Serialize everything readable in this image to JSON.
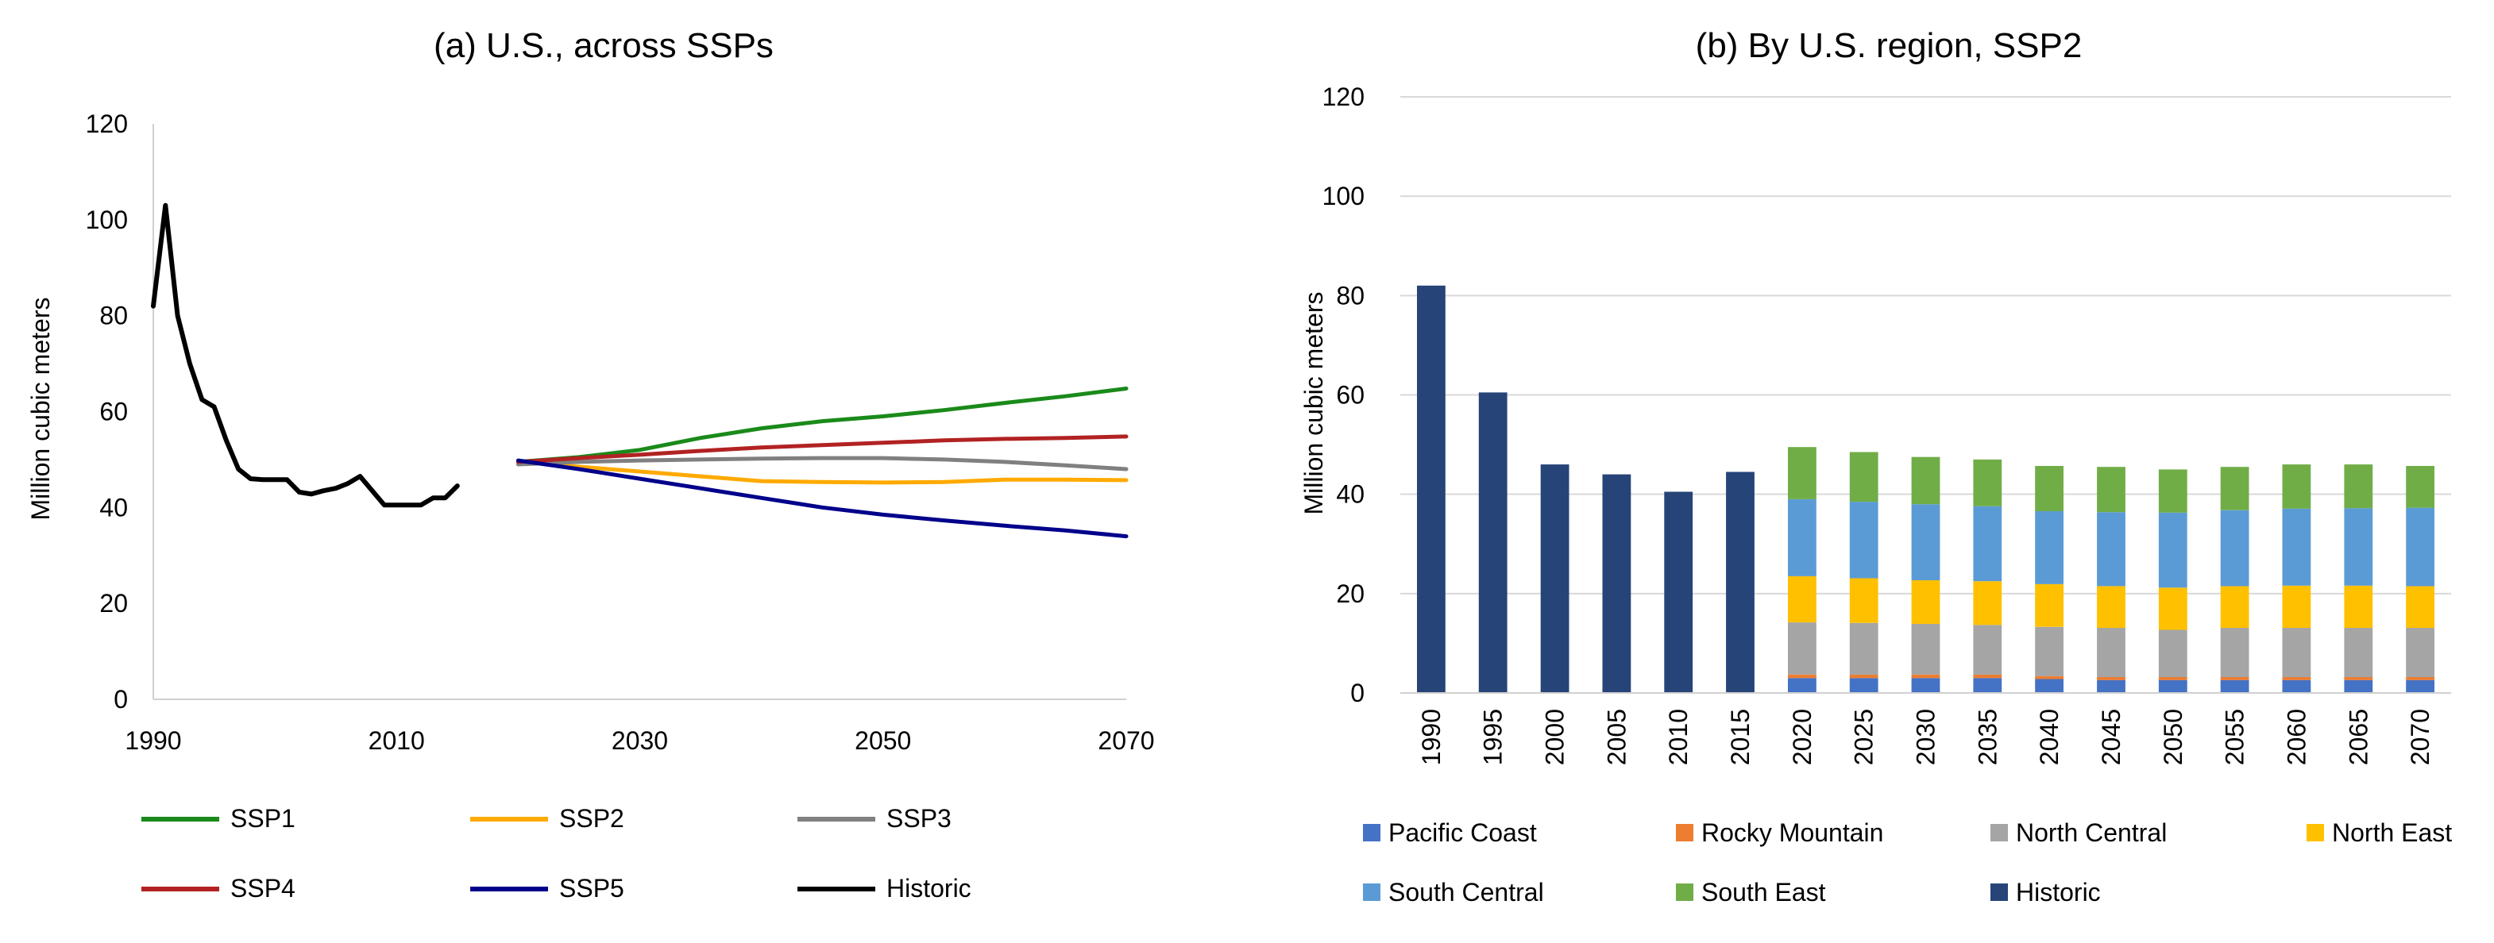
{
  "chart_data": [
    {
      "type": "line",
      "title": "(a) U.S., across SSPs",
      "xlabel": "",
      "ylabel": "Million cubic meters",
      "xlim": [
        1990,
        2070
      ],
      "ylim": [
        0,
        120
      ],
      "xticks": [
        1990,
        2010,
        2030,
        2050,
        2070
      ],
      "yticks": [
        0,
        20,
        40,
        60,
        80,
        100,
        120
      ],
      "grid": false,
      "legend_position": "bottom",
      "series": [
        {
          "name": "SSP1",
          "color": "#1a8a1a",
          "x": [
            2020,
            2025,
            2030,
            2035,
            2040,
            2045,
            2050,
            2055,
            2060,
            2065,
            2070
          ],
          "y": [
            49.5,
            50.5,
            52,
            54.5,
            56.5,
            58,
            59,
            60.3,
            61.8,
            63.2,
            64.8
          ]
        },
        {
          "name": "SSP2",
          "color": "#ffaa00",
          "x": [
            2020,
            2025,
            2030,
            2035,
            2040,
            2045,
            2050,
            2055,
            2060,
            2065,
            2070
          ],
          "y": [
            49.5,
            48.5,
            47.5,
            46.5,
            45.5,
            45.3,
            45.2,
            45.3,
            45.8,
            45.8,
            45.7
          ]
        },
        {
          "name": "SSP3",
          "color": "#808080",
          "x": [
            2020,
            2025,
            2030,
            2035,
            2040,
            2045,
            2050,
            2055,
            2060,
            2065,
            2070
          ],
          "y": [
            49,
            49.5,
            49.8,
            50,
            50.2,
            50.3,
            50.3,
            50,
            49.5,
            48.8,
            48
          ]
        },
        {
          "name": "SSP4",
          "color": "#b22222",
          "x": [
            2020,
            2025,
            2030,
            2035,
            2040,
            2045,
            2050,
            2055,
            2060,
            2065,
            2070
          ],
          "y": [
            49.5,
            50.3,
            51,
            51.8,
            52.5,
            53,
            53.5,
            54,
            54.3,
            54.5,
            54.8
          ]
        },
        {
          "name": "SSP5",
          "color": "#00008b",
          "x": [
            2020,
            2025,
            2030,
            2035,
            2040,
            2045,
            2050,
            2055,
            2060,
            2065,
            2070
          ],
          "y": [
            49.8,
            48,
            46,
            44,
            42,
            40,
            38.5,
            37.3,
            36.2,
            35.2,
            34
          ]
        },
        {
          "name": "Historic",
          "color": "#000000",
          "x": [
            1990,
            1991,
            1992,
            1993,
            1994,
            1995,
            1996,
            1997,
            1998,
            1999,
            2000,
            2001,
            2002,
            2003,
            2004,
            2005,
            2006,
            2007,
            2008,
            2009,
            2010,
            2011,
            2012,
            2013,
            2014,
            2015
          ],
          "y": [
            82,
            103,
            80,
            70,
            62.5,
            61,
            54,
            48,
            46,
            45.8,
            45.8,
            45.8,
            43.2,
            42.8,
            43.5,
            44,
            45,
            46.5,
            43.5,
            40.5,
            40.5,
            40.5,
            40.5,
            42,
            42,
            44.5
          ]
        }
      ]
    },
    {
      "type": "bar",
      "stacked": true,
      "title": "(b) By U.S. region, SSP2",
      "xlabel": "",
      "ylabel": "Million cubic meters",
      "ylim": [
        0,
        120
      ],
      "yticks": [
        0,
        20,
        40,
        60,
        80,
        100,
        120
      ],
      "grid": true,
      "legend_position": "bottom",
      "categories": [
        "1990",
        "1995",
        "2000",
        "2005",
        "2010",
        "2015",
        "2020",
        "2025",
        "2030",
        "2035",
        "2040",
        "2045",
        "2050",
        "2055",
        "2060",
        "2065",
        "2070"
      ],
      "series": [
        {
          "name": "Pacific Coast",
          "color": "#4472c4",
          "values": [
            0,
            0,
            0,
            0,
            0,
            0,
            3,
            3,
            3,
            3,
            2.8,
            2.6,
            2.6,
            2.6,
            2.6,
            2.6,
            2.6
          ]
        },
        {
          "name": "Rocky Mountain",
          "color": "#ed7d31",
          "values": [
            0,
            0,
            0,
            0,
            0,
            0,
            0.7,
            0.7,
            0.7,
            0.7,
            0.6,
            0.6,
            0.6,
            0.6,
            0.6,
            0.6,
            0.6
          ]
        },
        {
          "name": "North Central",
          "color": "#a5a5a5",
          "values": [
            0,
            0,
            0,
            0,
            0,
            0,
            10.5,
            10.4,
            10.2,
            10,
            9.9,
            9.9,
            9.5,
            9.9,
            9.9,
            9.9,
            9.9
          ]
        },
        {
          "name": "North East",
          "color": "#ffc000",
          "values": [
            0,
            0,
            0,
            0,
            0,
            0,
            9.3,
            9,
            8.8,
            8.8,
            8.6,
            8.4,
            8.5,
            8.4,
            8.5,
            8.5,
            8.4
          ]
        },
        {
          "name": "South Central",
          "color": "#5b9bd5",
          "values": [
            0,
            0,
            0,
            0,
            0,
            0,
            15.5,
            15.4,
            15.3,
            15.1,
            14.7,
            14.9,
            15.1,
            15.3,
            15.5,
            15.6,
            15.8
          ]
        },
        {
          "name": "South East",
          "color": "#70ad47",
          "values": [
            0,
            0,
            0,
            0,
            0,
            0,
            10.5,
            10,
            9.5,
            9.4,
            9.1,
            9.1,
            8.7,
            8.7,
            8.9,
            8.8,
            8.4
          ]
        },
        {
          "name": "Historic",
          "color": "#264478",
          "values": [
            82,
            60.5,
            46,
            44,
            40.5,
            44.5,
            0,
            0,
            0,
            0,
            0,
            0,
            0,
            0,
            0,
            0,
            0
          ]
        }
      ]
    }
  ]
}
